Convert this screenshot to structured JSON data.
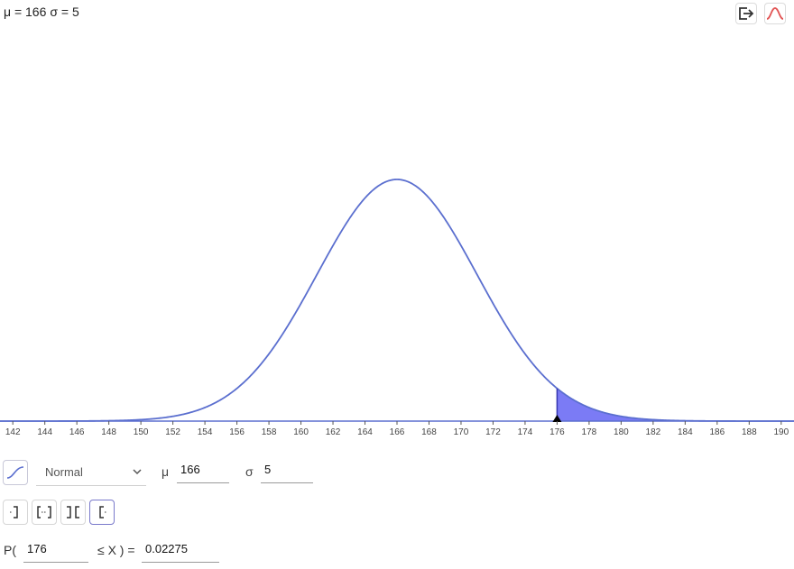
{
  "header": {
    "mu_text": "μ = 166",
    "sigma_text": "σ = 5"
  },
  "toolbar": {
    "export_icon": "export-icon",
    "curve_icon": "normal-curve-icon",
    "curve_color": "#e25555"
  },
  "chart_data": {
    "type": "area",
    "distribution": "normal",
    "mean": 166,
    "sd": 5,
    "xlim": [
      141.2,
      190.8
    ],
    "x_ticks": [
      142,
      144,
      146,
      148,
      150,
      152,
      154,
      156,
      158,
      160,
      162,
      164,
      166,
      168,
      170,
      172,
      174,
      176,
      178,
      180,
      182,
      184,
      186,
      188,
      190
    ],
    "shaded_region": {
      "from": 176,
      "to": "inf"
    },
    "curve_color": "#5b6fcf",
    "fill_color": "#7b7bf5",
    "marker_at": 176
  },
  "controls": {
    "distribution_label": "Normal",
    "mu_label": "μ",
    "mu_value": "166",
    "sigma_label": "σ",
    "sigma_value": "5",
    "mode_buttons": [
      "left-sided",
      "interval",
      "two-tailed",
      "right-sided"
    ],
    "active_mode": "right-sided"
  },
  "probability": {
    "prefix": "P(",
    "lower": "176",
    "middle": "≤ X ) =",
    "result": "0.02275"
  }
}
